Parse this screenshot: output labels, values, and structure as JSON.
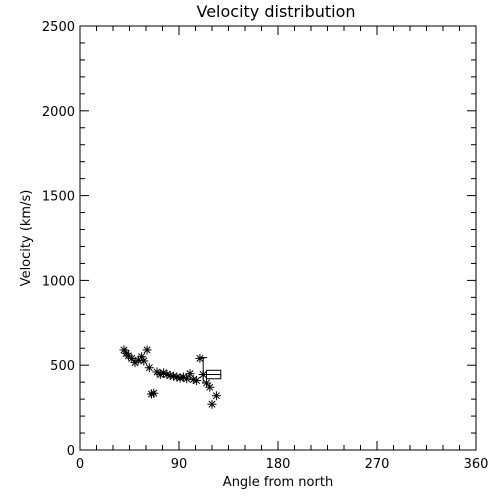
{
  "chart_data": {
    "type": "scatter",
    "title": "Velocity distribution",
    "xlabel": "Angle from north",
    "ylabel": "Velocity (km/s)",
    "xlim": [
      0,
      360
    ],
    "ylim": [
      0,
      2500
    ],
    "xticks": [
      0,
      90,
      180,
      270,
      360
    ],
    "yticks": [
      0,
      500,
      1000,
      1500,
      2000,
      2500
    ],
    "x_tick_labels": [
      "0",
      "90",
      "180",
      "270",
      "360"
    ],
    "y_tick_labels": [
      "0",
      "500",
      "1000",
      "1500",
      "2000",
      "2500"
    ],
    "marker": "asterisk",
    "series": [
      {
        "points": [
          {
            "x": 40,
            "y": 590
          },
          {
            "x": 42,
            "y": 570
          },
          {
            "x": 44,
            "y": 555
          },
          {
            "x": 47,
            "y": 540
          },
          {
            "x": 50,
            "y": 515
          },
          {
            "x": 53,
            "y": 530
          },
          {
            "x": 56,
            "y": 550
          },
          {
            "x": 58,
            "y": 525
          },
          {
            "x": 61,
            "y": 590
          },
          {
            "x": 63,
            "y": 485
          },
          {
            "x": 65,
            "y": 330
          },
          {
            "x": 67,
            "y": 335
          },
          {
            "x": 70,
            "y": 460
          },
          {
            "x": 73,
            "y": 445
          },
          {
            "x": 76,
            "y": 455
          },
          {
            "x": 79,
            "y": 445
          },
          {
            "x": 82,
            "y": 440
          },
          {
            "x": 85,
            "y": 435
          },
          {
            "x": 88,
            "y": 430
          },
          {
            "x": 91,
            "y": 425
          },
          {
            "x": 94,
            "y": 430
          },
          {
            "x": 97,
            "y": 420
          },
          {
            "x": 100,
            "y": 450
          },
          {
            "x": 103,
            "y": 415
          },
          {
            "x": 106,
            "y": 410
          },
          {
            "x": 109,
            "y": 540
          },
          {
            "x": 112,
            "y": 445
          },
          {
            "x": 115,
            "y": 395
          },
          {
            "x": 118,
            "y": 370
          },
          {
            "x": 120,
            "y": 270
          },
          {
            "x": 124,
            "y": 320
          }
        ]
      }
    ],
    "annotations": {
      "error_bar": {
        "x": 112,
        "y_low": 395,
        "y_high": 545
      },
      "box": {
        "x_from": 115,
        "x_to": 128,
        "y_from": 420,
        "y_to": 470
      }
    }
  }
}
